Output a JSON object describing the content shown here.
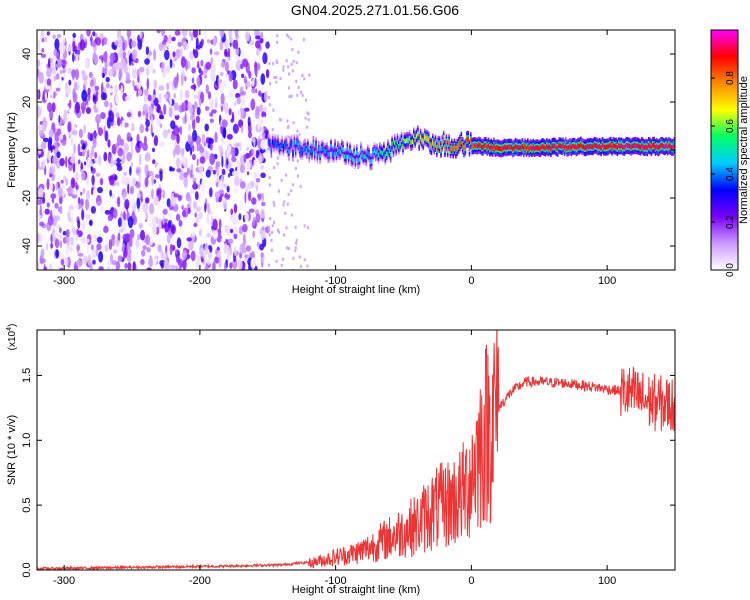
{
  "title": "GN04.2025.271.01.56.G06",
  "chart_data": [
    {
      "type": "heatmap",
      "title": "GN04.2025.271.01.56.G06",
      "xlabel": "Height of straight line (km)",
      "ylabel": "Frequency (Hz)",
      "xlim": [
        -320,
        150
      ],
      "ylim": [
        -50,
        50
      ],
      "xticks": [
        -300,
        -200,
        -100,
        0,
        100
      ],
      "yticks": [
        -40,
        -20,
        0,
        20,
        40
      ],
      "colorbar": {
        "label": "Normalized spectral amplitude",
        "range": [
          0.0,
          1.0
        ],
        "ticks": [
          0.0,
          0.2,
          0.4,
          0.6,
          0.8
        ],
        "colors": [
          "#ffffff",
          "#cc99ff",
          "#7a00ff",
          "#0000ff",
          "#00ccff",
          "#00ff66",
          "#ffff00",
          "#ff8800",
          "#ff0000",
          "#ff00ff"
        ]
      },
      "noise_region": {
        "x_from": -320,
        "x_to": -150,
        "amplitude": 0.2
      },
      "ridge": [
        {
          "x": -150,
          "y": 2,
          "amplitude": 0.35
        },
        {
          "x": -130,
          "y": 1,
          "amplitude": 0.4
        },
        {
          "x": -110,
          "y": 0,
          "amplitude": 0.42
        },
        {
          "x": -90,
          "y": -2,
          "amplitude": 0.45
        },
        {
          "x": -75,
          "y": -3,
          "amplitude": 0.45
        },
        {
          "x": -60,
          "y": 0,
          "amplitude": 0.55
        },
        {
          "x": -45,
          "y": 5,
          "amplitude": 0.6
        },
        {
          "x": -30,
          "y": 3,
          "amplitude": 0.75
        },
        {
          "x": -15,
          "y": 2,
          "amplitude": 0.8
        },
        {
          "x": 0,
          "y": 2,
          "amplitude": 0.85
        },
        {
          "x": 20,
          "y": 1,
          "amplitude": 0.9
        },
        {
          "x": 50,
          "y": 1,
          "amplitude": 0.9
        },
        {
          "x": 80,
          "y": 1.5,
          "amplitude": 0.9
        },
        {
          "x": 110,
          "y": 1.5,
          "amplitude": 0.92
        },
        {
          "x": 150,
          "y": 1.5,
          "amplitude": 0.92
        }
      ]
    },
    {
      "type": "line",
      "xlabel": "Height of straight line (km)",
      "ylabel": "SNR (10 * v/v)",
      "y_multiplier": "(x10",
      "y_multiplier_exp": "4",
      "xlim": [
        -320,
        150
      ],
      "ylim": [
        0,
        1.85
      ],
      "xticks": [
        -300,
        -200,
        -100,
        0,
        100
      ],
      "yticks": [
        0.0,
        0.5,
        1.0,
        1.5
      ],
      "color": "#ee3333",
      "series": [
        {
          "x": [
            -320,
            -250,
            -180,
            -140,
            -120,
            -100,
            -90,
            -80,
            -70,
            -60,
            -50,
            -40,
            -30,
            -20,
            -10,
            -5,
            0,
            5,
            10,
            20,
            30,
            40,
            50,
            70,
            90,
            110,
            120,
            130,
            140,
            150
          ],
          "y": [
            0.0,
            0.01,
            0.02,
            0.03,
            0.05,
            0.1,
            0.12,
            0.15,
            0.2,
            0.25,
            0.3,
            0.35,
            0.45,
            0.5,
            0.55,
            0.6,
            0.75,
            0.9,
            1.05,
            1.25,
            1.38,
            1.45,
            1.45,
            1.44,
            1.41,
            1.38,
            1.35,
            1.3,
            1.28,
            1.27
          ]
        }
      ]
    }
  ]
}
